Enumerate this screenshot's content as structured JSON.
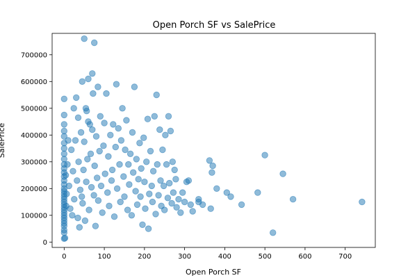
{
  "chart_data": {
    "type": "scatter",
    "title": "Open Porch SF vs SalePrice",
    "xlabel": "Open Porch SF",
    "ylabel": "SalePrice",
    "xlim": [
      -30,
      775
    ],
    "ylim": [
      -20000,
      780000
    ],
    "x_ticks": [
      0,
      100,
      200,
      300,
      400,
      500,
      600,
      700
    ],
    "y_ticks": [
      0,
      100000,
      200000,
      300000,
      400000,
      500000,
      600000,
      700000
    ],
    "grid": false,
    "color": "#1f77b4",
    "series": [
      {
        "points": [
          [
            0,
            535000
          ],
          [
            0,
            475000
          ],
          [
            0,
            440000
          ],
          [
            0,
            415000
          ],
          [
            0,
            395000
          ],
          [
            0,
            370000
          ],
          [
            0,
            350000
          ],
          [
            0,
            330000
          ],
          [
            0,
            310000
          ],
          [
            0,
            290000
          ],
          [
            0,
            275000
          ],
          [
            0,
            260000
          ],
          [
            0,
            245000
          ],
          [
            0,
            230000
          ],
          [
            0,
            215000
          ],
          [
            0,
            200000
          ],
          [
            0,
            190000
          ],
          [
            0,
            180000
          ],
          [
            0,
            170000
          ],
          [
            0,
            160000
          ],
          [
            0,
            150000
          ],
          [
            0,
            140000
          ],
          [
            0,
            130000
          ],
          [
            0,
            120000
          ],
          [
            0,
            110000
          ],
          [
            0,
            100000
          ],
          [
            0,
            90000
          ],
          [
            0,
            80000
          ],
          [
            0,
            70000
          ],
          [
            0,
            60000
          ],
          [
            0,
            45000
          ],
          [
            0,
            35000
          ],
          [
            0,
            13000
          ],
          [
            2,
            15000
          ],
          [
            4,
            250000
          ],
          [
            5,
            135000
          ],
          [
            6,
            180000
          ],
          [
            8,
            290000
          ],
          [
            10,
            380000
          ],
          [
            12,
            210000
          ],
          [
            15,
            125000
          ],
          [
            18,
            345000
          ],
          [
            20,
            100000
          ],
          [
            22,
            265000
          ],
          [
            24,
            500000
          ],
          [
            25,
            160000
          ],
          [
            28,
            380000
          ],
          [
            30,
            540000
          ],
          [
            32,
            230000
          ],
          [
            34,
            90000
          ],
          [
            35,
            465000
          ],
          [
            36,
            300000
          ],
          [
            38,
            55000
          ],
          [
            40,
            195000
          ],
          [
            42,
            410000
          ],
          [
            44,
            170000
          ],
          [
            45,
            600000
          ],
          [
            46,
            145000
          ],
          [
            48,
            270000
          ],
          [
            50,
            760000
          ],
          [
            50,
            375000
          ],
          [
            52,
            80000
          ],
          [
            54,
            500000
          ],
          [
            55,
            225000
          ],
          [
            56,
            490000
          ],
          [
            58,
            310000
          ],
          [
            60,
            450000
          ],
          [
            60,
            610000
          ],
          [
            62,
            120000
          ],
          [
            64,
            440000
          ],
          [
            66,
            330000
          ],
          [
            68,
            205000
          ],
          [
            70,
            630000
          ],
          [
            70,
            420000
          ],
          [
            72,
            555000
          ],
          [
            74,
            175000
          ],
          [
            75,
            745000
          ],
          [
            76,
            285000
          ],
          [
            78,
            60000
          ],
          [
            80,
            395000
          ],
          [
            82,
            240000
          ],
          [
            84,
            580000
          ],
          [
            85,
            155000
          ],
          [
            88,
            340000
          ],
          [
            90,
            470000
          ],
          [
            92,
            210000
          ],
          [
            95,
            110000
          ],
          [
            98,
            360000
          ],
          [
            100,
            445000
          ],
          [
            102,
            255000
          ],
          [
            105,
            555000
          ],
          [
            108,
            185000
          ],
          [
            110,
            320000
          ],
          [
            112,
            135000
          ],
          [
            115,
            400000
          ],
          [
            118,
            230000
          ],
          [
            120,
            270000
          ],
          [
            122,
            440000
          ],
          [
            125,
            95000
          ],
          [
            128,
            355000
          ],
          [
            130,
            590000
          ],
          [
            132,
            200000
          ],
          [
            135,
            425000
          ],
          [
            138,
            290000
          ],
          [
            140,
            150000
          ],
          [
            142,
            380000
          ],
          [
            145,
            500000
          ],
          [
            148,
            245000
          ],
          [
            150,
            170000
          ],
          [
            152,
            345000
          ],
          [
            155,
            455000
          ],
          [
            158,
            120000
          ],
          [
            160,
            290000
          ],
          [
            162,
            215000
          ],
          [
            165,
            330000
          ],
          [
            168,
            100000
          ],
          [
            170,
            410000
          ],
          [
            172,
            260000
          ],
          [
            175,
            580000
          ],
          [
            178,
            190000
          ],
          [
            180,
            310000
          ],
          [
            182,
            140000
          ],
          [
            185,
            235000
          ],
          [
            188,
            370000
          ],
          [
            190,
            170000
          ],
          [
            192,
            275000
          ],
          [
            195,
            65000
          ],
          [
            198,
            390000
          ],
          [
            200,
            225000
          ],
          [
            202,
            125000
          ],
          [
            205,
            300000
          ],
          [
            208,
            460000
          ],
          [
            210,
            50000
          ],
          [
            212,
            180000
          ],
          [
            215,
            340000
          ],
          [
            218,
            210000
          ],
          [
            220,
            150000
          ],
          [
            222,
            265000
          ],
          [
            225,
            470000
          ],
          [
            228,
            105000
          ],
          [
            230,
            550000
          ],
          [
            232,
            290000
          ],
          [
            235,
            175000
          ],
          [
            238,
            420000
          ],
          [
            240,
            230000
          ],
          [
            242,
            135000
          ],
          [
            245,
            345000
          ],
          [
            248,
            210000
          ],
          [
            250,
            120000
          ],
          [
            252,
            400000
          ],
          [
            255,
            290000
          ],
          [
            258,
            165000
          ],
          [
            260,
            470000
          ],
          [
            262,
            220000
          ],
          [
            265,
            415000
          ],
          [
            268,
            145000
          ],
          [
            270,
            300000
          ],
          [
            272,
            185000
          ],
          [
            275,
            270000
          ],
          [
            278,
            235000
          ],
          [
            280,
            130000
          ],
          [
            285,
            160000
          ],
          [
            290,
            110000
          ],
          [
            295,
            185000
          ],
          [
            300,
            150000
          ],
          [
            305,
            225000
          ],
          [
            310,
            230000
          ],
          [
            315,
            140000
          ],
          [
            320,
            115000
          ],
          [
            335,
            160000
          ],
          [
            335,
            150000
          ],
          [
            345,
            140000
          ],
          [
            362,
            305000
          ],
          [
            365,
            125000
          ],
          [
            368,
            260000
          ],
          [
            370,
            285000
          ],
          [
            380,
            200000
          ],
          [
            405,
            185000
          ],
          [
            415,
            170000
          ],
          [
            442,
            140000
          ],
          [
            482,
            185000
          ],
          [
            500,
            325000
          ],
          [
            520,
            35000
          ],
          [
            545,
            255000
          ],
          [
            570,
            160000
          ],
          [
            742,
            150000
          ]
        ]
      }
    ]
  }
}
